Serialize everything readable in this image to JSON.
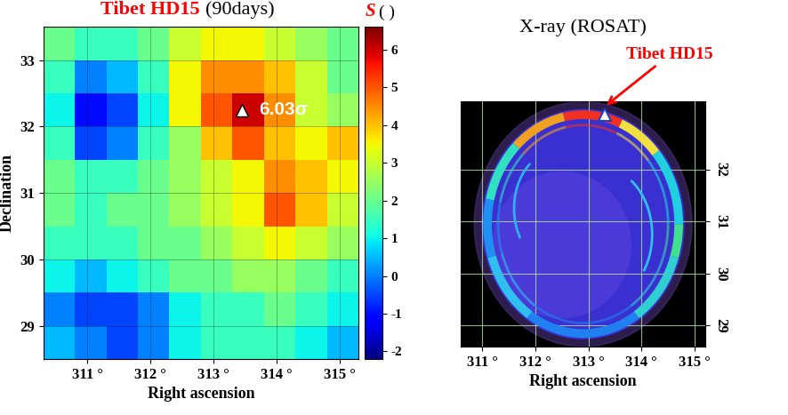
{
  "chart_data": [
    {
      "type": "heatmap",
      "title": "Tibet HD15",
      "subtitle": "(90days)",
      "x_label": "Right ascension",
      "y_label": "Declination",
      "xlim": [
        310.3,
        315.3
      ],
      "ylim": [
        28.5,
        33.5
      ],
      "xticks": [
        {
          "value": 311,
          "label": "311 °"
        },
        {
          "value": 312,
          "label": "312 °"
        },
        {
          "value": 313,
          "label": "313 °"
        },
        {
          "value": 314,
          "label": "314 °"
        },
        {
          "value": 315,
          "label": "315 °"
        }
      ],
      "yticks": [
        29,
        30,
        31,
        32,
        33
      ],
      "x_edges": [
        310.3,
        310.8,
        311.3,
        311.8,
        312.3,
        312.8,
        313.3,
        313.8,
        314.3,
        314.8,
        315.3
      ],
      "y_edges": [
        28.5,
        29.0,
        29.5,
        30.0,
        30.5,
        31.0,
        31.5,
        32.0,
        32.5,
        33.0,
        33.5
      ],
      "cells": [
        [
          0.5,
          0,
          -0.5,
          0,
          1,
          1.5,
          1.5,
          1.5,
          1,
          0.5
        ],
        [
          0,
          -0.5,
          -0.5,
          0,
          1,
          1.5,
          1.5,
          2,
          1.5,
          1
        ],
        [
          1,
          0.5,
          1,
          1.5,
          2,
          2,
          2.5,
          2.5,
          2,
          1.5
        ],
        [
          1.5,
          1.5,
          1.5,
          2,
          2,
          2.5,
          3,
          3.5,
          3,
          2.5
        ],
        [
          2,
          1.5,
          2,
          2,
          2.5,
          3,
          3.5,
          5,
          4,
          3
        ],
        [
          2,
          1.5,
          1.5,
          2,
          2.5,
          3,
          3.5,
          4.5,
          4,
          3.5
        ],
        [
          1.5,
          -0.5,
          0,
          1.5,
          2.5,
          4,
          5,
          4,
          3.5,
          4
        ],
        [
          1,
          -1,
          -0.5,
          1,
          3.5,
          5,
          6,
          4.5,
          3,
          2.5
        ],
        [
          1.5,
          0,
          0.5,
          1.5,
          3.5,
          4.5,
          4.5,
          4,
          3,
          2
        ],
        [
          2,
          1.5,
          1.5,
          2,
          3,
          3.5,
          3.5,
          3,
          2.5,
          2
        ]
      ],
      "colorbar": {
        "label": "S",
        "unit": "( )",
        "range": [
          -2.2,
          6.6
        ],
        "ticks": [
          -2,
          -1,
          0,
          1,
          2,
          3,
          4,
          5,
          6
        ]
      },
      "annotations": [
        {
          "text": "6.03σ",
          "x": 313.45,
          "y": 32.25
        }
      ],
      "grid": true
    },
    {
      "type": "image",
      "title": "X-ray (ROSAT)",
      "x_label": "Right ascension",
      "xlim": [
        310.6,
        315.2
      ],
      "ylim": [
        28.6,
        33.3
      ],
      "xticks": [
        {
          "value": 311,
          "label": "311 °"
        },
        {
          "value": 312,
          "label": "312 °"
        },
        {
          "value": 313,
          "label": "313 °"
        },
        {
          "value": 314,
          "label": "314 °"
        },
        {
          "value": 315,
          "label": "315 °"
        }
      ],
      "yticks": [
        29,
        30,
        31,
        32
      ],
      "annotations": [
        {
          "text": "Tibet HD15",
          "x": 313.3,
          "y": 33.05
        }
      ],
      "grid": true
    }
  ]
}
